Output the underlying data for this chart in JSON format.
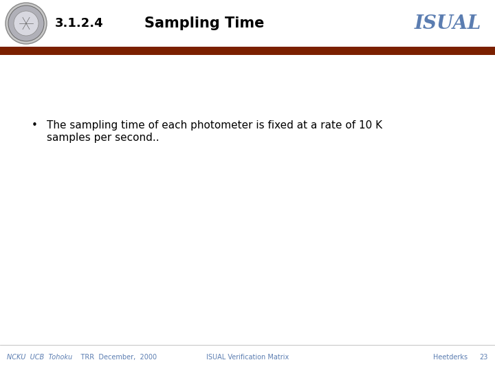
{
  "slide_number": "3.1.2.4",
  "title": "Sampling Time",
  "isual_text": "ISUAL",
  "bullet_line1": "The sampling time of each photometer is fixed at a rate of 10 K",
  "bullet_line2": "samples per second..",
  "footer_left_italic": "NCKU  UCB  Tohoku",
  "footer_left_normal": "    TRR  December,  2000",
  "footer_center": "ISUAL Verification Matrix",
  "footer_right": "Heetderks",
  "footer_page": "23",
  "header_bar_color": "#7B2000",
  "slide_bg_color": "#FFFFFF",
  "title_color": "#000000",
  "section_color": "#000000",
  "isual_color": "#5B7DB1",
  "footer_color": "#5B7DB1",
  "bullet_color": "#000000"
}
